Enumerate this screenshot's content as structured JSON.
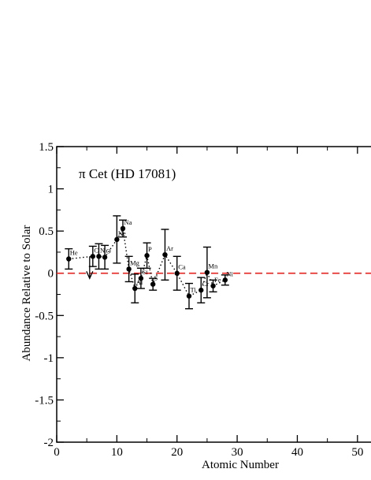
{
  "chart_data": {
    "type": "scatter",
    "annotation": "π  Cet (HD 17081)",
    "xlabel": "Atomic Number",
    "ylabel": "Abundance Relative to Solar",
    "xlim": [
      0,
      55
    ],
    "ylim": [
      -2,
      1.5
    ],
    "x_ticks": [
      "0",
      "10",
      "20",
      "30",
      "40",
      "50"
    ],
    "y_ticks": [
      "-2",
      "-1.5",
      "-1",
      "-0.5",
      "0",
      "0.5",
      "1",
      "1.5"
    ],
    "reference_line": {
      "y": 0,
      "color": "#e8221e",
      "style": "dashed"
    },
    "grid": false,
    "points": [
      {
        "label": "He",
        "x": 2,
        "y": 0.17,
        "err": 0.12
      },
      {
        "label": "C",
        "x": 6,
        "y": 0.2,
        "err": 0.12,
        "upper_limit": true
      },
      {
        "label": "N",
        "x": 7,
        "y": 0.2,
        "err": 0.15
      },
      {
        "label": "O",
        "x": 8,
        "y": 0.19,
        "err": 0.14
      },
      {
        "label": "Ne",
        "x": 10,
        "y": 0.4,
        "err": 0.28
      },
      {
        "label": "Na",
        "x": 11,
        "y": 0.53,
        "err": 0.1
      },
      {
        "label": "Mg",
        "x": 12,
        "y": 0.05,
        "err": 0.15
      },
      {
        "label": "Al",
        "x": 13,
        "y": -0.18,
        "err": 0.17
      },
      {
        "label": "Si",
        "x": 14,
        "y": -0.06,
        "err": 0.12
      },
      {
        "label": "P",
        "x": 15,
        "y": 0.21,
        "err": 0.15
      },
      {
        "label": "S",
        "x": 16,
        "y": -0.13,
        "err": 0.07
      },
      {
        "label": "Ar",
        "x": 18,
        "y": 0.22,
        "err": 0.3
      },
      {
        "label": "Ca",
        "x": 20,
        "y": 0.0,
        "err": 0.2
      },
      {
        "label": "Ti",
        "x": 22,
        "y": -0.27,
        "err": 0.15
      },
      {
        "label": "Cr",
        "x": 24,
        "y": -0.2,
        "err": 0.15
      },
      {
        "label": "Mn",
        "x": 25,
        "y": 0.01,
        "err": 0.3
      },
      {
        "label": "Fe",
        "x": 26,
        "y": -0.15,
        "err": 0.07
      },
      {
        "label": "Ni",
        "x": 28,
        "y": -0.08,
        "err": 0.06
      }
    ]
  }
}
